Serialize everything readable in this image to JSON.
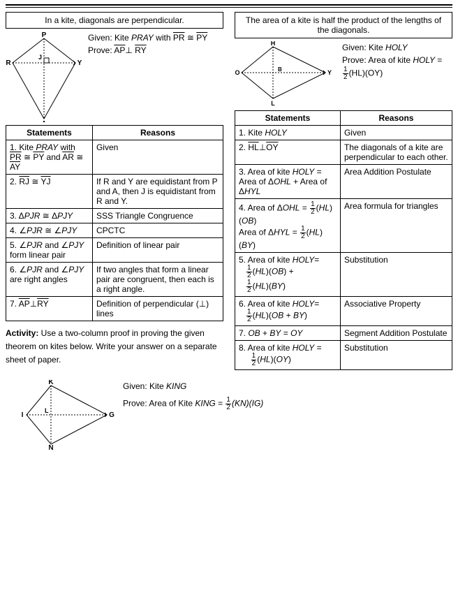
{
  "left": {
    "box_text": "In a kite, diagonals are perpendicular.",
    "given_label": "Given: Kite ",
    "given_kite": "PRAY",
    "given_with": " with ",
    "seg1": "PR",
    "cong": " ≅ ",
    "seg2": "PY",
    "prove_label": "Prove: ",
    "prove_seg1": "AP",
    "perp": "⊥",
    "prove_seg2": "RY",
    "diagram": {
      "P": "P",
      "R": "R",
      "Y": "Y",
      "A": "A",
      "J": "J"
    },
    "table": {
      "h1": "Statements",
      "h2": "Reasons",
      "rows": [
        {
          "s": "1.  Kite <span class='it'>PRAY</span> with <span class='overline'>PR</span> ≅ <span class='overline'>PY</span> and <span class='overline'>AR</span> ≅ <span class='overline'>AY</span>",
          "r": "Given"
        },
        {
          "s": "2. <span class='overline'>RJ</span> ≅ <span class='overline'>YJ</span>",
          "r": "If R and Y are equidistant from P and A, then J is equidistant from R and Y."
        },
        {
          "s": "3. Δ<span class='it'>PJR</span> ≅ Δ<span class='it'>PJY</span>",
          "r": "SSS Triangle Congruence"
        },
        {
          "s": "4. ∠<span class='it'>PJR</span> ≅ ∠<span class='it'>PJY</span>",
          "r": "CPCTC"
        },
        {
          "s": "5. ∠<span class='it'>PJR</span> and ∠<span class='it'>PJY</span> form linear pair",
          "r": "Definition of linear pair"
        },
        {
          "s": "6. ∠<span class='it'>PJR</span> and ∠<span class='it'>PJY</span> are right angles",
          "r": "If two angles that form a linear pair are congruent, then each is a right angle."
        },
        {
          "s": "7. <span class='overline'>AP</span>⊥<span class='overline'>RY</span>",
          "r": "Definition of perpendicular (⊥) lines"
        }
      ]
    },
    "activity_bold": "Activity:",
    "activity_text": " Use a two-column proof in proving the given theorem on kites below. Write your answer on a separate sheet of paper."
  },
  "right": {
    "box_text": "The area of a kite is half the product of the lengths of the diagonals.",
    "given_label": "Given: Kite ",
    "given_kite": "HOLY",
    "prove_label": "Prove: Area of kite ",
    "prove_kite": "HOLY",
    "prove_eq": " =",
    "formula_hl": "(HL)(OY)",
    "diagram": {
      "H": "H",
      "O": "O",
      "L": "L",
      "Y": "Y",
      "B": "B"
    },
    "table": {
      "h1": "Statements",
      "h2": "Reasons",
      "rows": [
        {
          "s": "1. Kite <span class='it'>HOLY</span>",
          "r": "Given"
        },
        {
          "s": "2. <span class='overline'>HL</span>⊥<span class='overline'>OY</span>",
          "r": "The diagonals of a kite are perpendicular to each other."
        },
        {
          "s": "3. Area of kite <span class='it'>HOLY</span> = Area of Δ<span class='it'>OHL</span> + Area of Δ<span class='it'>HYL</span>",
          "r": "Area Addition Postulate"
        },
        {
          "s": "4. Area of Δ<span class='it'>OHL</span> = <span class='frac'><span class='n'>1</span><span class='d'>2</span></span>(<span class='it'>HL</span>)(<span class='it'>OB</span>)<br>Area of Δ<span class='it'>HYL</span> = <span class='frac'><span class='n'>1</span><span class='d'>2</span></span>(<span class='it'>HL</span>)(<span class='it'>BY</span>)",
          "r": "Area formula for triangles"
        },
        {
          "s": "5.  Area of kite  <span class='it'>HOLY</span>= <br>&nbsp;&nbsp;&nbsp;<span class='frac'><span class='n'>1</span><span class='d'>2</span></span>(<span class='it'>HL</span>)(<span class='it'>OB</span>) + <br>&nbsp;&nbsp;&nbsp;<span class='frac'><span class='n'>1</span><span class='d'>2</span></span>(<span class='it'>HL</span>)(<span class='it'>BY</span>)",
          "r": "Substitution"
        },
        {
          "s": "6.  Area of kite  <span class='it'>HOLY</span>= <br>&nbsp;&nbsp;&nbsp;<span class='frac'><span class='n'>1</span><span class='d'>2</span></span>(<span class='it'>HL</span>)(<span class='it'>OB</span> + <span class='it'>BY</span>)",
          "r": "Associative Property"
        },
        {
          "s": "7. <span class='it'>OB</span> + <span class='it'>BY</span> = <span class='it'>OY</span>",
          "r": "Segment Addition Postulate"
        },
        {
          "s": "8. Area of kite <span class='it'>HOLY</span> = <br>&nbsp;&nbsp;&nbsp;&nbsp;&nbsp;<span class='frac'><span class='n'>1</span><span class='d'>2</span></span>(<span class='it'>HL</span>)(<span class='it'>OY</span>)",
          "r": "Substitution"
        }
      ]
    }
  },
  "bottom": {
    "given_label": "Given: Kite ",
    "given_kite": "KING",
    "prove_label": "Prove: Area of Kite ",
    "prove_kite": "KING",
    "eq": " =",
    "formula": "(KN)(IG)",
    "diagram": {
      "K": "K",
      "I": "I",
      "N": "N",
      "G": "G",
      "L": "L"
    }
  },
  "style": {
    "text_color": "#000000",
    "border_color": "#000000",
    "bg": "#ffffff",
    "font_size_body": 12,
    "font_family": "Arial"
  }
}
